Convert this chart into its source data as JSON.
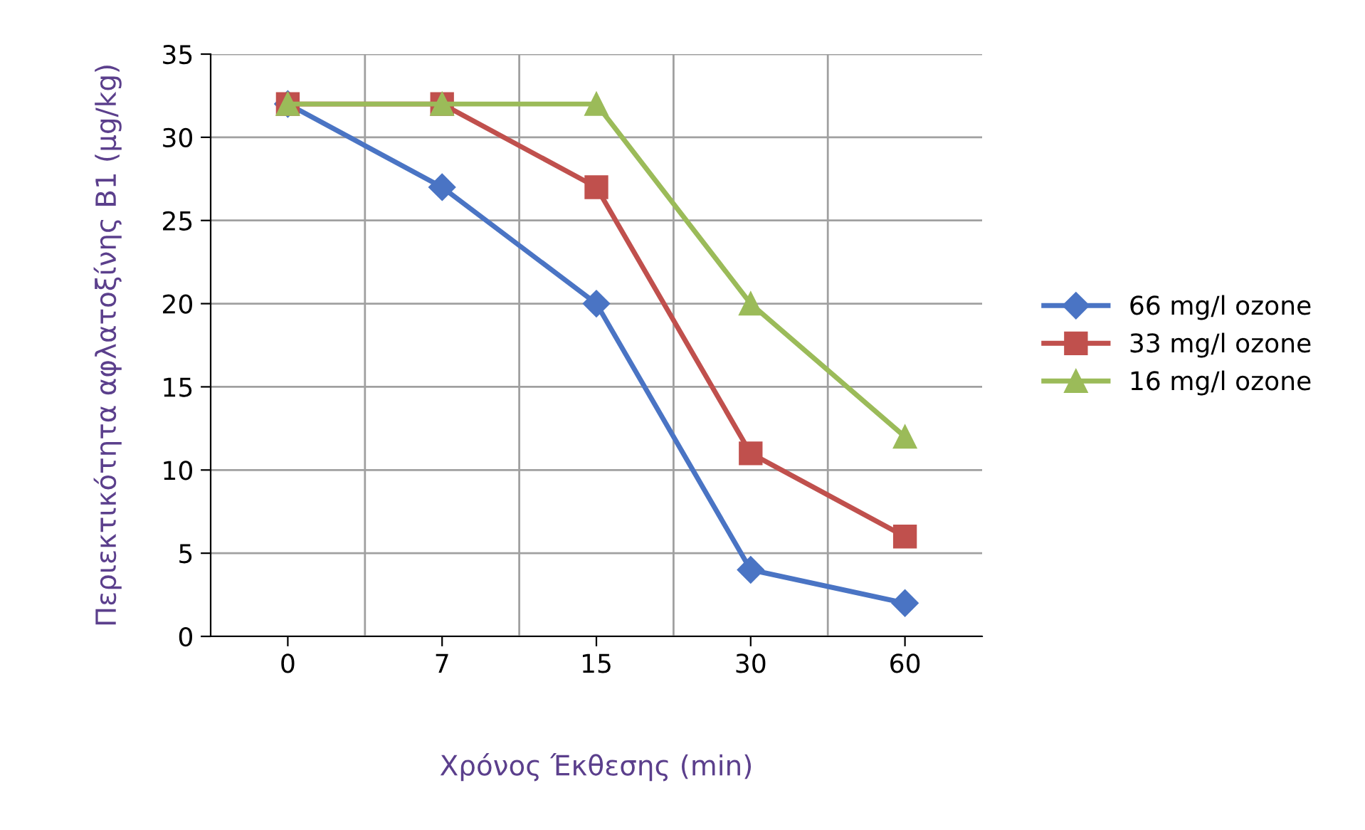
{
  "chart_data": {
    "type": "line",
    "xlabel": "Χρόνος Έκθεσης (min)",
    "ylabel": "Περιεκτικότητα αφλατοξίνης Β1 (μg/kg)",
    "categories": [
      "0",
      "7",
      "15",
      "30",
      "60"
    ],
    "series": [
      {
        "name": "66 mg/l ozone",
        "color": "#4a74c4",
        "marker": "diamond",
        "values": [
          32,
          27,
          20,
          4,
          2
        ]
      },
      {
        "name": "33 mg/l ozone",
        "color": "#c0504d",
        "marker": "square",
        "values": [
          32,
          32,
          27,
          11,
          6
        ]
      },
      {
        "name": "16 mg/l ozone",
        "color": "#9bbb59",
        "marker": "triangle",
        "values": [
          32,
          32,
          32,
          20,
          12
        ]
      }
    ],
    "ylim": [
      0,
      35
    ],
    "yticks": [
      0,
      5,
      10,
      15,
      20,
      25,
      30,
      35
    ],
    "grid": true,
    "legend": "right",
    "line_style": "solid"
  }
}
